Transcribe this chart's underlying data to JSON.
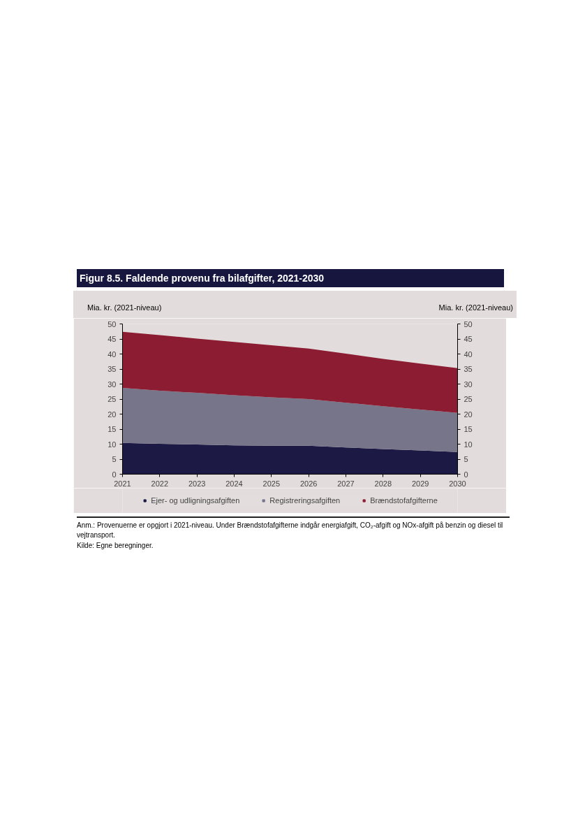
{
  "chart_data": {
    "type": "area",
    "stacked": true,
    "title": "Figur 8.5. Faldende provenu fra bilafgifter, 2021-2030",
    "ylabel": "Mia. kr. (2021-niveau)",
    "y2label": "Mia. kr. (2021-niveau)",
    "x": [
      2021,
      2022,
      2023,
      2024,
      2025,
      2026,
      2027,
      2028,
      2029,
      2030
    ],
    "xlim": [
      2021,
      2030
    ],
    "xticks": [
      2021,
      2022,
      2023,
      2024,
      2025,
      2026,
      2027,
      2028,
      2029,
      2030
    ],
    "ylim": [
      0,
      50
    ],
    "yticks": [
      0,
      5,
      10,
      15,
      20,
      25,
      30,
      35,
      40,
      45,
      50
    ],
    "y2lim": [
      0,
      50
    ],
    "y2ticks": [
      0,
      5,
      10,
      15,
      20,
      25,
      30,
      35,
      40,
      45,
      50
    ],
    "series": [
      {
        "name": "Ejer- og udligningsafgiften",
        "color": "#1c1a45",
        "values": [
          10.4,
          10.1,
          9.9,
          9.6,
          9.5,
          9.5,
          8.9,
          8.4,
          7.9,
          7.4
        ]
      },
      {
        "name": "Registreringsafgiften",
        "color": "#767589",
        "values": [
          18.3,
          17.7,
          17.2,
          16.7,
          16.1,
          15.5,
          14.9,
          14.2,
          13.6,
          13.0
        ]
      },
      {
        "name": "Brændstofafgifterne",
        "color": "#8b1c31",
        "values": [
          18.7,
          18.5,
          18.0,
          17.7,
          17.3,
          16.8,
          16.3,
          15.8,
          15.3,
          14.9
        ]
      }
    ],
    "legend": "bottom",
    "annotations": [
      "Anm.: Provenuerne er opgjort i 2021-niveau. Under Brændstofafgifterne indgår energiafgift, CO₂-afgift og NOx-afgift på benzin og diesel til vejtransport.",
      "Kilde: Egne beregninger."
    ]
  }
}
